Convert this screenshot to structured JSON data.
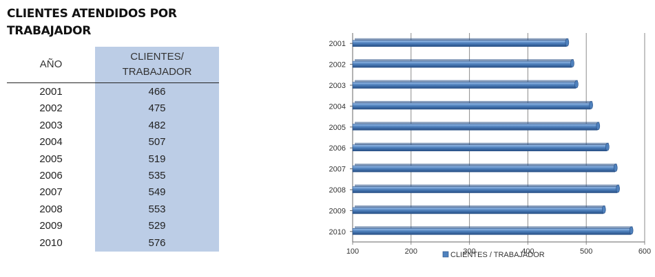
{
  "title": "CLIENTES ATENDIDOS POR TRABAJADOR",
  "table": {
    "headers": {
      "year": "AÑO",
      "clients_line1": "CLIENTES/",
      "clients_line2": "TRABAJADOR"
    },
    "rows": [
      {
        "year": "2001",
        "value": "466"
      },
      {
        "year": "2002",
        "value": "475"
      },
      {
        "year": "2003",
        "value": "482"
      },
      {
        "year": "2004",
        "value": "507"
      },
      {
        "year": "2005",
        "value": "519"
      },
      {
        "year": "2006",
        "value": "535"
      },
      {
        "year": "2007",
        "value": "549"
      },
      {
        "year": "2008",
        "value": "553"
      },
      {
        "year": "2009",
        "value": "529"
      },
      {
        "year": "2010",
        "value": "576"
      }
    ]
  },
  "chart_data": {
    "type": "bar",
    "orientation": "horizontal",
    "categories": [
      "2001",
      "2002",
      "2003",
      "2004",
      "2005",
      "2006",
      "2007",
      "2008",
      "2009",
      "2010"
    ],
    "series": [
      {
        "name": "CLIENTES / TRABAJADOR",
        "values": [
          466,
          475,
          482,
          507,
          519,
          535,
          549,
          553,
          529,
          576
        ]
      }
    ],
    "xlim": [
      100,
      600
    ],
    "x_ticks": [
      "100",
      "200",
      "300",
      "400",
      "500",
      "600"
    ],
    "grid": "vertical",
    "legend": "bottom",
    "colors": {
      "bar": "#4f81bd",
      "bar_dark": "#274f85",
      "bar_light": "#9dc0ea",
      "grid": "#8a8a8a",
      "table_shade": "#bccde6"
    }
  }
}
